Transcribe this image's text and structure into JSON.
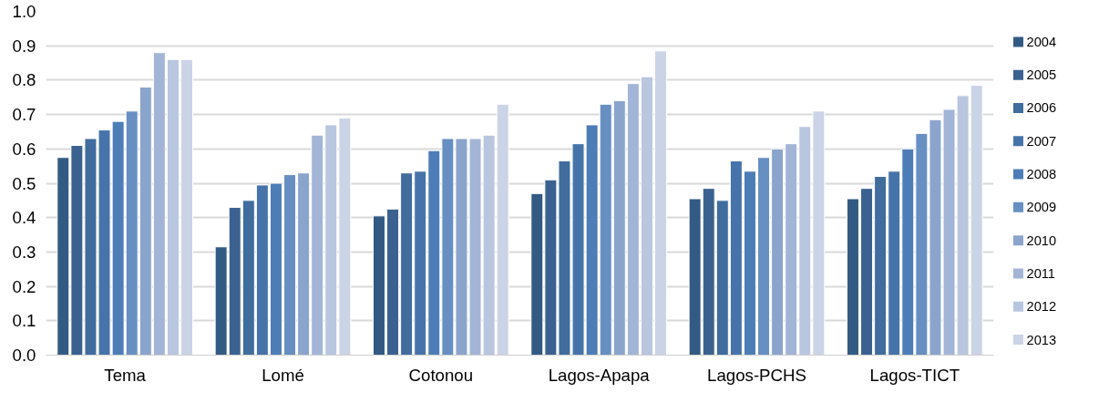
{
  "chart_data": {
    "type": "bar",
    "categories": [
      "Tema",
      "Lomé",
      "Cotonou",
      "Lagos-Apapa",
      "Lagos-PCHS",
      "Lagos-TICT"
    ],
    "series": [
      {
        "name": "2004",
        "color": "#335a82",
        "values": [
          0.575,
          0.315,
          0.405,
          0.47,
          0.455,
          0.455
        ]
      },
      {
        "name": "2005",
        "color": "#3b6190",
        "values": [
          0.61,
          0.43,
          0.425,
          0.51,
          0.485,
          0.485
        ]
      },
      {
        "name": "2006",
        "color": "#406c9e",
        "values": [
          0.63,
          0.45,
          0.53,
          0.565,
          0.45,
          0.52
        ]
      },
      {
        "name": "2007",
        "color": "#4674aa",
        "values": [
          0.655,
          0.495,
          0.535,
          0.615,
          0.565,
          0.535
        ]
      },
      {
        "name": "2008",
        "color": "#4d7db7",
        "values": [
          0.68,
          0.5,
          0.595,
          0.67,
          0.535,
          0.6
        ]
      },
      {
        "name": "2009",
        "color": "#678fc2",
        "values": [
          0.71,
          0.525,
          0.63,
          0.73,
          0.575,
          0.645
        ]
      },
      {
        "name": "2010",
        "color": "#8ba4cc",
        "values": [
          0.78,
          0.53,
          0.63,
          0.74,
          0.6,
          0.685
        ]
      },
      {
        "name": "2011",
        "color": "#a3b5d6",
        "values": [
          0.88,
          0.64,
          0.63,
          0.79,
          0.615,
          0.715
        ]
      },
      {
        "name": "2012",
        "color": "#b9c6df",
        "values": [
          0.86,
          0.67,
          0.64,
          0.81,
          0.665,
          0.755
        ]
      },
      {
        "name": "2013",
        "color": "#cbd4e6",
        "values": [
          0.86,
          0.69,
          0.73,
          0.885,
          0.71,
          0.785
        ]
      }
    ],
    "ylim": [
      0,
      1.0
    ],
    "yticks": [
      {
        "value": 0,
        "label": "0.0"
      },
      0.1,
      0.2,
      0.3,
      0.4,
      0.5,
      0.6,
      0.7,
      0.8,
      0.9,
      {
        "value": 1.0,
        "label": "1.0"
      }
    ],
    "grid": "y",
    "legend": "right"
  }
}
